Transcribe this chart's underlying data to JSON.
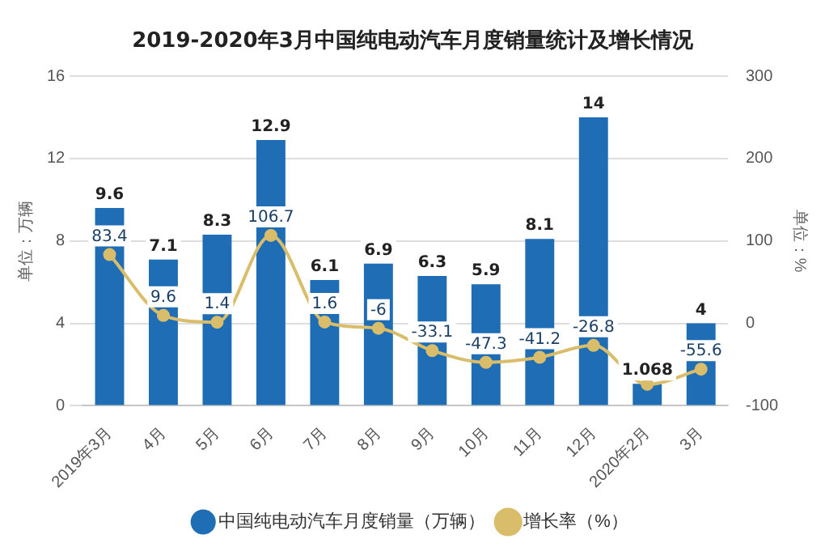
{
  "chart_data": {
    "type": "bar",
    "title": "2019-2020年3月中国纯电动汽车月度销量统计及增长情况",
    "ylabel": "单位：万辆",
    "y2label": "单位：%",
    "categories": [
      "2019年3月",
      "4月",
      "5月",
      "6月",
      "7月",
      "8月",
      "9月",
      "10月",
      "11月",
      "12月",
      "2020年2月",
      "3月"
    ],
    "series": [
      {
        "name": "中国纯电动汽车月度销量（万辆）",
        "color": "#1f6db5",
        "values": [
          9.6,
          7.1,
          8.3,
          12.9,
          6.1,
          6.9,
          6.3,
          5.9,
          8.1,
          14,
          1.068,
          4
        ],
        "value_labels": [
          "9.6",
          "7.1",
          "8.3",
          "12.9",
          "6.1",
          "6.9",
          "6.3",
          "5.9",
          "8.1",
          "14",
          "1.068",
          "4"
        ]
      },
      {
        "name": "增长率（%）",
        "type": "line",
        "axis": "y2",
        "color": "#d9bd6a",
        "marker": "circle",
        "values": [
          83.4,
          9.6,
          1.4,
          106.7,
          1.6,
          -6,
          -33.1,
          -47.3,
          -41.2,
          -26.8,
          -74,
          -55.6
        ],
        "value_labels": [
          "83.4",
          "9.6",
          "1.4",
          "106.7",
          "1.6",
          "-6",
          "-33.1",
          "-47.3",
          "-41.2",
          "-26.8",
          null,
          "-55.6"
        ]
      }
    ],
    "ylim": [
      0,
      16
    ],
    "yticks": [
      0,
      4,
      8,
      12,
      16
    ],
    "y2lim": [
      -100,
      300
    ],
    "y2ticks": [
      -100,
      0,
      100,
      200,
      300
    ],
    "grid": "y",
    "legend": "bottom"
  }
}
